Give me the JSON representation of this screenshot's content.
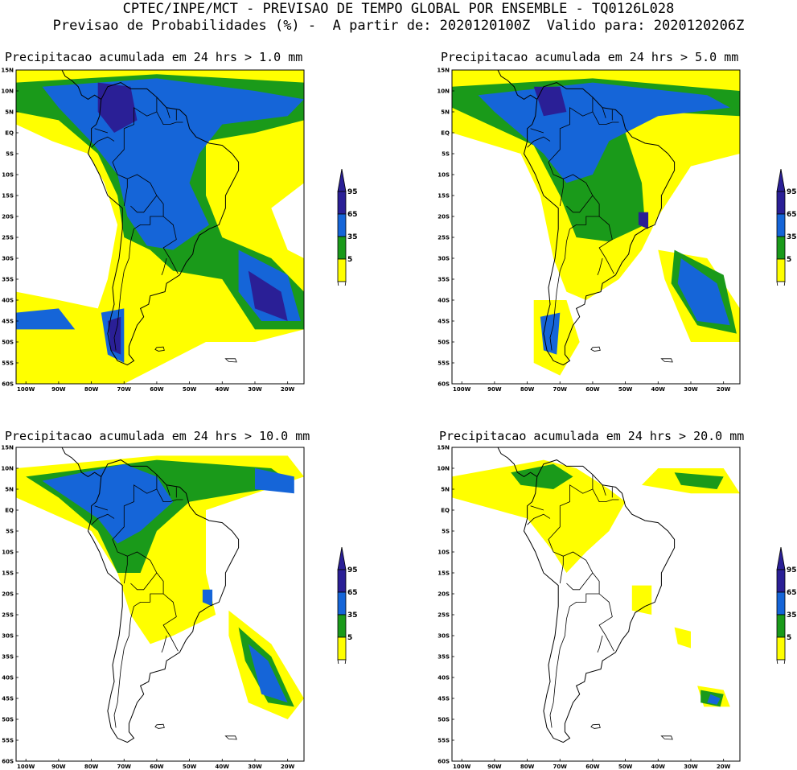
{
  "header": {
    "line1": "CPTEC/INPE/MCT - PREVISAO DE TEMPO GLOBAL POR ENSEMBLE - TQ0126L028",
    "line2": "Previsao de Probabilidades (%) -  A partir de: 2020120100Z  Valido para: 2020120206Z"
  },
  "colors": {
    "p5": "#ffff00",
    "p35": "#1a9a1a",
    "p65": "#1565d8",
    "p95": "#2a1f96",
    "land_line": "#000000"
  },
  "axes": {
    "lat_labels": [
      "15N",
      "10N",
      "5N",
      "EQ",
      "5S",
      "10S",
      "15S",
      "20S",
      "25S",
      "30S",
      "35S",
      "40S",
      "45S",
      "50S",
      "55S",
      "60S"
    ],
    "lon_labels": [
      "100W",
      "90W",
      "80W",
      "70W",
      "60W",
      "50W",
      "40W",
      "30W",
      "20W"
    ]
  },
  "legend": {
    "levels": [
      "95",
      "65",
      "35",
      "5"
    ]
  },
  "panels": [
    {
      "id": "p1",
      "title": "Precipitacao acumulada em 24 hrs > 1.0 mm"
    },
    {
      "id": "p2",
      "title": "Precipitacao acumulada em 24 hrs > 5.0 mm"
    },
    {
      "id": "p3",
      "title": "Precipitacao acumulada em 24 hrs > 10.0 mm"
    },
    {
      "id": "p4",
      "title": "Precipitacao acumulada em 24 hrs > 20.0 mm"
    }
  ]
}
